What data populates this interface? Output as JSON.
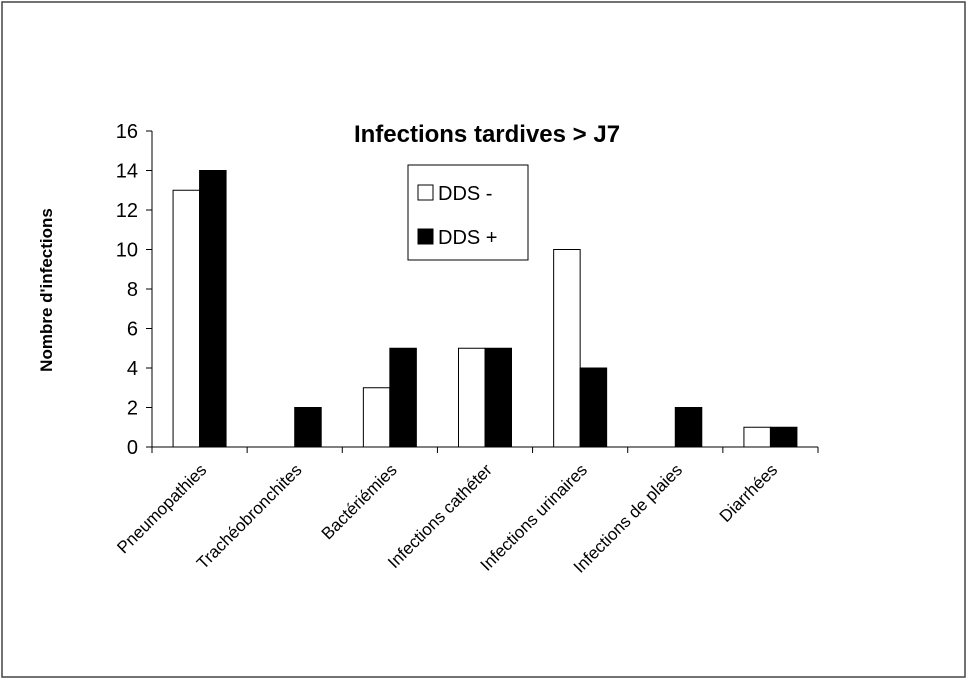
{
  "chart_data": {
    "type": "bar",
    "title": "Infections tardives > J7",
    "y_label": "Nombre d'infections",
    "categories": [
      "Pneumopathies",
      "Trachéobronchites",
      "Bactériémies",
      "Infections cathéter",
      "Infections urinaires",
      "Infections de plaies",
      "Diarrhées"
    ],
    "series": [
      {
        "name": "DDS -",
        "color": "#ffffff",
        "values": [
          13,
          0,
          3,
          5,
          10,
          0,
          1
        ]
      },
      {
        "name": "DDS +",
        "color": "#000000",
        "values": [
          14,
          2,
          5,
          5,
          4,
          2,
          1
        ]
      }
    ],
    "ylim": [
      0,
      16
    ],
    "yticks": [
      0,
      2,
      4,
      6,
      8,
      10,
      12,
      14,
      16
    ],
    "grid": false,
    "legend": "top-center"
  }
}
